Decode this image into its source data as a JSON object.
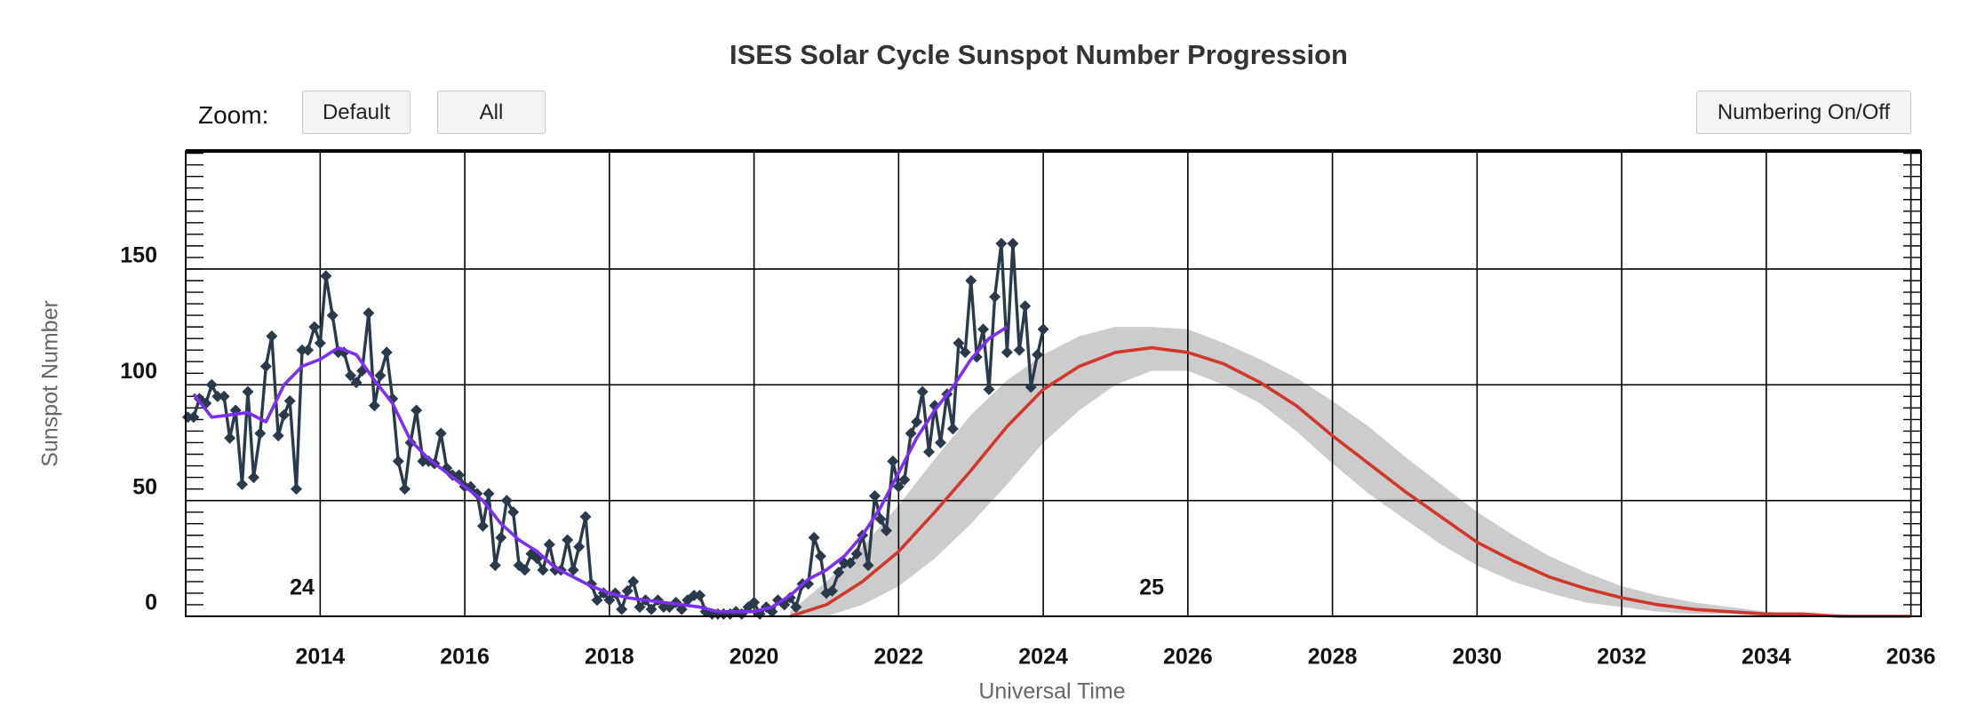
{
  "controls": {
    "zoom_label": "Zoom:",
    "buttons": [
      "Default",
      "All"
    ],
    "numbering": "Numbering On/Off"
  },
  "chart_data": {
    "type": "line",
    "title": "ISES Solar Cycle Sunspot Number Progression",
    "xlabel": "Universal Time",
    "ylabel": "Sunspot Number",
    "xlim": [
      2012.14,
      2036.14
    ],
    "xticks": [
      2014,
      2016,
      2018,
      2020,
      2022,
      2024,
      2026,
      2028,
      2030,
      2032,
      2034,
      2036
    ],
    "ylim": [
      0,
      201
    ],
    "yticks": [
      0,
      50,
      100,
      150
    ],
    "yminorticks": [
      0,
      5,
      10,
      15,
      20,
      25,
      30,
      35,
      40,
      45,
      50,
      55,
      60,
      65,
      70,
      75,
      80,
      85,
      90,
      95,
      100,
      105,
      110,
      115,
      120,
      125,
      130,
      135,
      140,
      145,
      150,
      155,
      160,
      165,
      170,
      175,
      180,
      185,
      190,
      195,
      200
    ],
    "grid": true,
    "band": {
      "color": "#cccccc",
      "x": [
        2020.5,
        2021.0,
        2021.5,
        2022.0,
        2022.5,
        2023.0,
        2023.5,
        2024.0,
        2024.5,
        2025.0,
        2025.5,
        2026.0,
        2026.5,
        2027.0,
        2027.5,
        2028.0,
        2028.5,
        2029.0,
        2029.5,
        2030.0,
        2030.5,
        2031.0,
        2031.5,
        2032.0,
        2032.5,
        2033.0,
        2033.5,
        2034.0,
        2034.5,
        2035.0,
        2035.5,
        2036.0
      ],
      "high": [
        2,
        15,
        30,
        48,
        68,
        87,
        102,
        113,
        121,
        125,
        125,
        124,
        118,
        111,
        103,
        93,
        82,
        69,
        57,
        45,
        35,
        26,
        19,
        13,
        9,
        6,
        4,
        2,
        1,
        1,
        0,
        0
      ],
      "low": [
        0,
        0,
        5,
        13,
        25,
        40,
        57,
        75,
        89,
        100,
        106,
        106,
        100,
        92,
        80,
        66,
        53,
        42,
        31,
        22,
        15,
        10,
        6,
        4,
        2,
        1,
        1,
        0,
        0,
        0,
        0,
        0
      ]
    },
    "series": [
      {
        "color": "#2b3a4b",
        "marker": "diamond",
        "x": [
          2012.17,
          2012.25,
          2012.33,
          2012.42,
          2012.5,
          2012.58,
          2012.67,
          2012.75,
          2012.83,
          2012.92,
          2013.0,
          2013.08,
          2013.17,
          2013.25,
          2013.33,
          2013.42,
          2013.5,
          2013.58,
          2013.67,
          2013.75,
          2013.83,
          2013.92,
          2014.0,
          2014.08,
          2014.17,
          2014.25,
          2014.33,
          2014.42,
          2014.5,
          2014.58,
          2014.67,
          2014.75,
          2014.83,
          2014.92,
          2015.0,
          2015.08,
          2015.17,
          2015.25,
          2015.33,
          2015.42,
          2015.5,
          2015.58,
          2015.67,
          2015.75,
          2015.83,
          2015.92,
          2016.0,
          2016.08,
          2016.17,
          2016.25,
          2016.33,
          2016.42,
          2016.5,
          2016.58,
          2016.67,
          2016.75,
          2016.83,
          2016.92,
          2017.0,
          2017.08,
          2017.17,
          2017.25,
          2017.33,
          2017.42,
          2017.5,
          2017.58,
          2017.67,
          2017.75,
          2017.83,
          2017.92,
          2018.0,
          2018.08,
          2018.17,
          2018.25,
          2018.33,
          2018.42,
          2018.5,
          2018.58,
          2018.67,
          2018.75,
          2018.83,
          2018.92,
          2019.0,
          2019.08,
          2019.17,
          2019.25,
          2019.33,
          2019.42,
          2019.5,
          2019.58,
          2019.67,
          2019.75,
          2019.83,
          2019.92,
          2020.0,
          2020.08,
          2020.17,
          2020.25,
          2020.33,
          2020.42,
          2020.5,
          2020.58,
          2020.67,
          2020.75,
          2020.83,
          2020.92,
          2021.0,
          2021.08,
          2021.17,
          2021.25,
          2021.33,
          2021.42,
          2021.5,
          2021.58,
          2021.67,
          2021.75,
          2021.83,
          2021.92,
          2022.0,
          2022.08,
          2022.17,
          2022.25,
          2022.33,
          2022.42,
          2022.5,
          2022.58,
          2022.67,
          2022.75,
          2022.83,
          2022.92,
          2023.0,
          2023.08,
          2023.17,
          2023.25,
          2023.33,
          2023.42,
          2023.5,
          2023.58,
          2023.67,
          2023.75,
          2023.83,
          2023.92,
          2024.0
        ],
        "values": [
          86,
          86,
          94,
          92,
          100,
          95,
          95,
          77,
          89,
          57,
          97,
          60,
          79,
          108,
          121,
          78,
          87,
          93,
          55,
          115,
          115,
          125,
          118,
          147,
          130,
          114,
          114,
          104,
          101,
          106,
          131,
          91,
          104,
          114,
          94,
          67,
          55,
          75,
          89,
          67,
          67,
          66,
          79,
          64,
          61,
          61,
          56,
          56,
          53,
          39,
          53,
          22,
          34,
          50,
          45,
          22,
          20,
          27,
          25,
          20,
          31,
          20,
          20,
          33,
          20,
          30,
          43,
          14,
          7,
          10,
          7,
          10,
          3,
          11,
          15,
          4,
          7,
          3,
          7,
          4,
          4,
          6,
          3,
          7,
          9,
          9,
          2,
          1,
          1,
          1,
          1,
          2,
          1,
          4,
          6,
          1,
          4,
          2,
          7,
          5,
          8,
          4,
          14,
          14,
          34,
          26,
          10,
          11,
          19,
          23,
          23,
          27,
          35,
          22,
          52,
          42,
          37,
          67,
          56,
          59,
          79,
          84,
          97,
          71,
          91,
          75,
          96,
          81,
          118,
          114,
          145,
          112,
          124,
          98,
          138,
          161,
          114,
          161,
          115,
          134,
          99,
          113,
          124
        ]
      },
      {
        "color": "#7b2ff0",
        "x": [
          2012.25,
          2012.5,
          2012.75,
          2013.0,
          2013.25,
          2013.5,
          2013.75,
          2014.0,
          2014.25,
          2014.5,
          2014.75,
          2015.0,
          2015.25,
          2015.5,
          2015.75,
          2016.0,
          2016.25,
          2016.5,
          2016.75,
          2017.0,
          2017.25,
          2017.5,
          2017.75,
          2018.0,
          2018.25,
          2018.5,
          2018.75,
          2019.0,
          2019.25,
          2019.5,
          2019.75,
          2020.0,
          2020.25,
          2020.5,
          2020.75,
          2021.0,
          2021.25,
          2021.5,
          2021.75,
          2022.0,
          2022.25,
          2022.5,
          2022.75,
          2023.0,
          2023.25,
          2023.5
        ],
        "values": [
          96,
          86,
          87,
          88,
          84,
          100,
          108,
          111,
          116,
          113,
          102,
          92,
          76,
          68,
          62,
          56,
          50,
          40,
          33,
          28,
          21,
          17,
          13,
          10,
          8,
          7,
          6,
          5,
          4,
          2,
          2,
          2,
          4,
          9,
          16,
          20,
          26,
          35,
          47,
          62,
          77,
          89,
          99,
          111,
          120,
          125
        ]
      },
      {
        "color": "#d0382b",
        "x": [
          2020.5,
          2021.0,
          2021.5,
          2022.0,
          2022.5,
          2023.0,
          2023.5,
          2024.0,
          2024.5,
          2025.0,
          2025.5,
          2026.0,
          2026.5,
          2027.0,
          2027.5,
          2028.0,
          2028.5,
          2029.0,
          2029.5,
          2030.0,
          2030.5,
          2031.0,
          2031.5,
          2032.0,
          2032.5,
          2033.0,
          2033.5,
          2034.0,
          2034.5,
          2035.0,
          2035.5,
          2036.0
        ],
        "values": [
          0,
          5,
          15,
          28,
          45,
          63,
          82,
          98,
          108,
          114,
          116,
          114,
          109,
          101,
          91,
          78,
          66,
          54,
          43,
          32,
          24,
          17,
          12,
          8,
          5,
          3,
          2,
          1,
          1,
          0,
          0,
          0
        ]
      }
    ],
    "annotations": [
      {
        "text": "24",
        "x": 2013.75,
        "y": 12
      },
      {
        "text": "25",
        "x": 2025.5,
        "y": 12
      }
    ]
  }
}
